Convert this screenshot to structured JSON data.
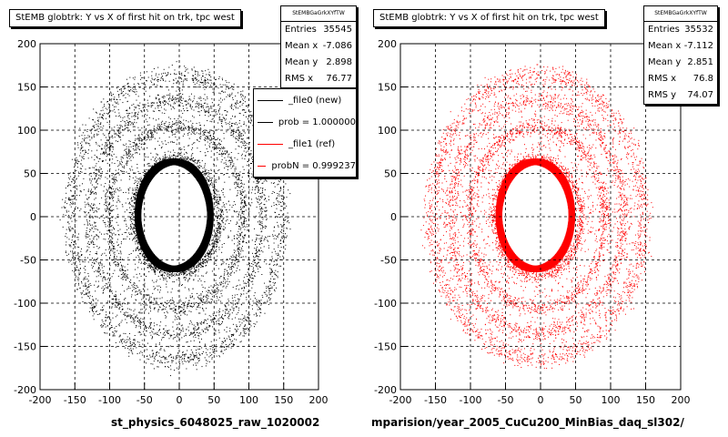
{
  "chart_data": [
    {
      "type": "scatter",
      "title": "StEMB globtrk: Y vs X of first hit on trk, tpc west",
      "xlim": [
        -200,
        200
      ],
      "ylim": [
        -200,
        200
      ],
      "xticks": [
        "-200",
        "-150",
        "-100",
        "-50",
        "0",
        "50",
        "100",
        "150",
        "200"
      ],
      "yticks": [
        "200",
        "150",
        "100",
        "50",
        "0",
        "-50",
        "-100",
        "-150",
        "-200"
      ],
      "grid": true,
      "color": "#000000",
      "xlabel": "st_physics_6048025_raw_1020002",
      "stats": {
        "header": "StEMBGaGrkXYfTW",
        "rows": [
          {
            "label": "Entries",
            "value": "35545"
          },
          {
            "label": "Mean x",
            "value": "-7.086"
          },
          {
            "label": "Mean y",
            "value": "2.898"
          },
          {
            "label": "RMS x",
            "value": "76.77"
          }
        ]
      },
      "legend": [
        {
          "label": "_file0 (new)",
          "color": "#000000"
        },
        {
          "label": "prob = 1.000000",
          "color": "#000000"
        },
        {
          "label": "_file1 (ref)",
          "color": "#ff0000"
        },
        {
          "label": "probN = 0.999237",
          "color": "#ff0000"
        }
      ]
    },
    {
      "type": "scatter",
      "title": "StEMB globtrk: Y vs X of first hit on trk, tpc west",
      "xlim": [
        -200,
        200
      ],
      "ylim": [
        -200,
        200
      ],
      "xticks": [
        "-200",
        "-150",
        "-100",
        "-50",
        "0",
        "50",
        "100",
        "150",
        "200"
      ],
      "yticks": [
        "200",
        "150",
        "100",
        "50",
        "0",
        "-50",
        "-100",
        "-150",
        "-200"
      ],
      "grid": true,
      "color": "#ff0000",
      "xlabel": "mparision/year_2005_CuCu200_MinBias_daq_sl302/",
      "stats": {
        "header": "StEMBGaGrkXYfTW",
        "rows": [
          {
            "label": "Entries",
            "value": "35532"
          },
          {
            "label": "Mean x",
            "value": "-7.112"
          },
          {
            "label": "Mean y",
            "value": "2.851"
          },
          {
            "label": "RMS x",
            "value": "76.8"
          },
          {
            "label": "RMS y",
            "value": "74.07"
          }
        ]
      }
    }
  ]
}
